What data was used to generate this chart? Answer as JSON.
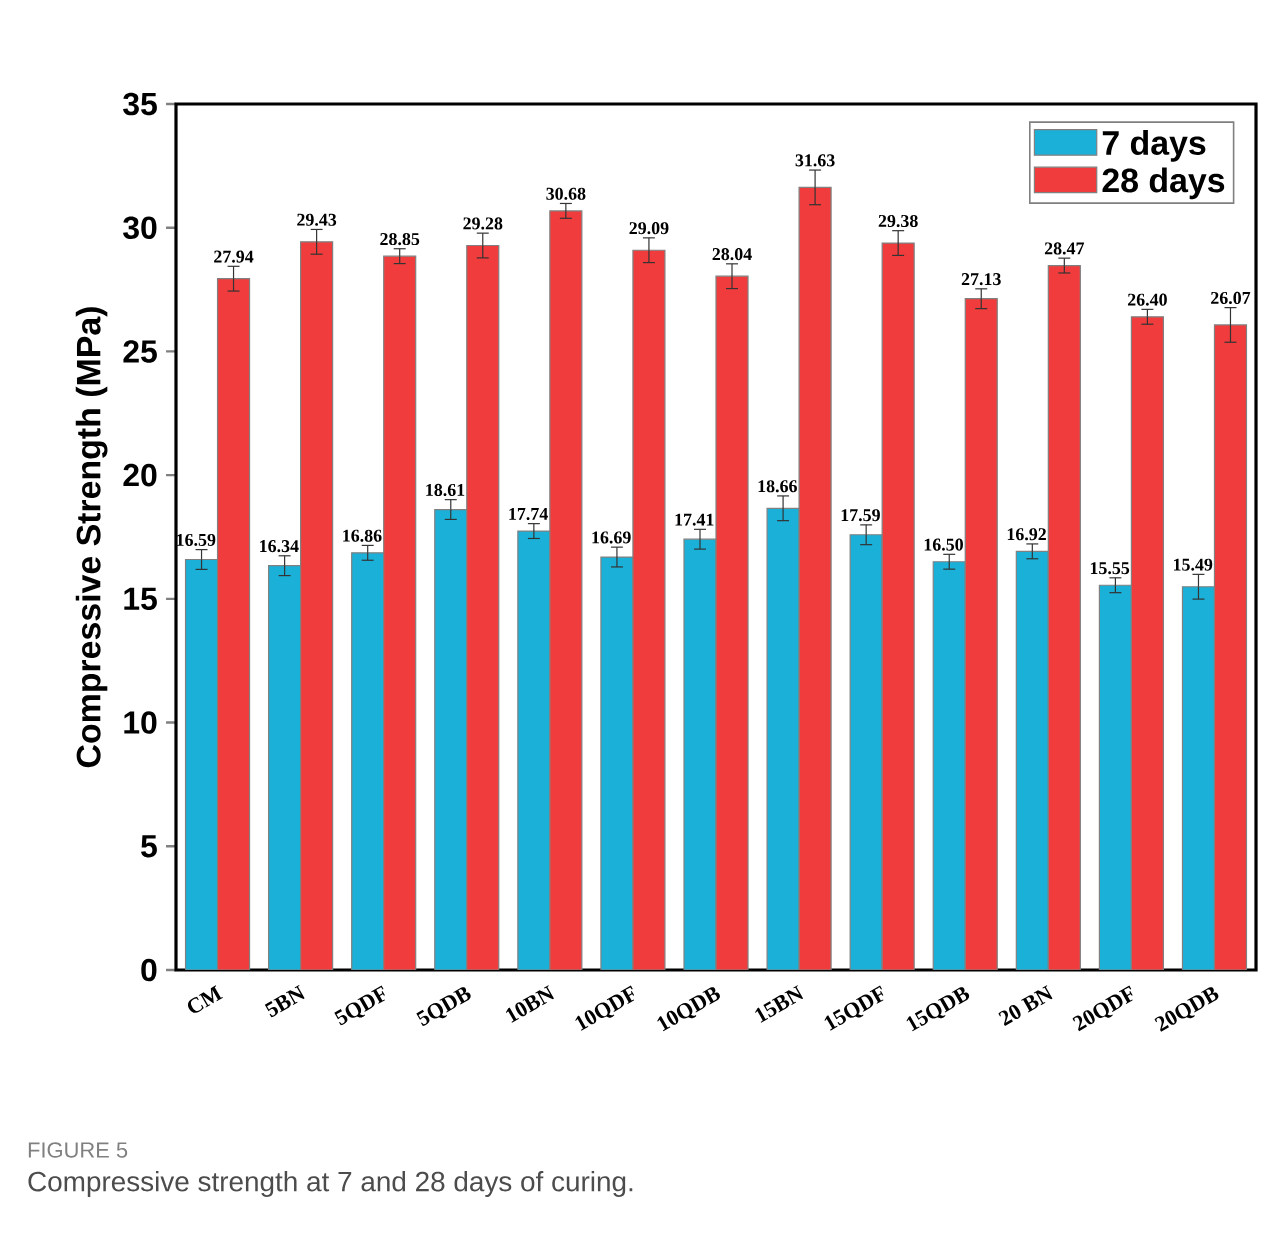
{
  "chart_data": {
    "type": "bar",
    "ylabel": "Compressive Strength (MPa)",
    "categories": [
      "CM",
      "5BN",
      "5QDF",
      "5QDB",
      "10BN",
      "10QDF",
      "10QDB",
      "15BN",
      "15QDF",
      "15QDB",
      "20 BN",
      "20QDF",
      "20QDB"
    ],
    "series": [
      {
        "name": "7 days",
        "color": "#1ab0d8",
        "values": [
          16.59,
          16.34,
          16.86,
          18.61,
          17.74,
          16.69,
          17.41,
          18.66,
          17.59,
          16.5,
          16.92,
          15.55,
          15.49
        ],
        "errors": [
          0.4,
          0.4,
          0.3,
          0.4,
          0.3,
          0.4,
          0.4,
          0.5,
          0.4,
          0.3,
          0.3,
          0.3,
          0.5
        ],
        "value_labels": [
          "16.59",
          "16.34",
          "16.86",
          "18.61",
          "17.74",
          "16.69",
          "17.41",
          "18.66",
          "17.59",
          "16.50",
          "16.92",
          "15.55",
          "15.49"
        ]
      },
      {
        "name": "28 days",
        "color": "#f03c3c",
        "values": [
          27.94,
          29.43,
          28.85,
          29.28,
          30.68,
          29.09,
          28.04,
          31.63,
          29.38,
          27.13,
          28.47,
          26.4,
          26.07
        ],
        "errors": [
          0.5,
          0.5,
          0.3,
          0.5,
          0.3,
          0.5,
          0.5,
          0.7,
          0.5,
          0.4,
          0.3,
          0.3,
          0.7
        ],
        "value_labels": [
          "27.94",
          "29.43",
          "28.85",
          "29.28",
          "30.68",
          "29.09",
          "28.04",
          "31.63",
          "29.38",
          "27.13",
          "28.47",
          "26.40",
          "26.07"
        ]
      }
    ],
    "ylim": [
      0,
      35
    ],
    "yticks": [
      0,
      5,
      10,
      15,
      20,
      25,
      30,
      35
    ],
    "legend": "top right",
    "annotations": [
      "FIGURE 5",
      "Compressive strength at 7 and 28 days of curing."
    ]
  }
}
